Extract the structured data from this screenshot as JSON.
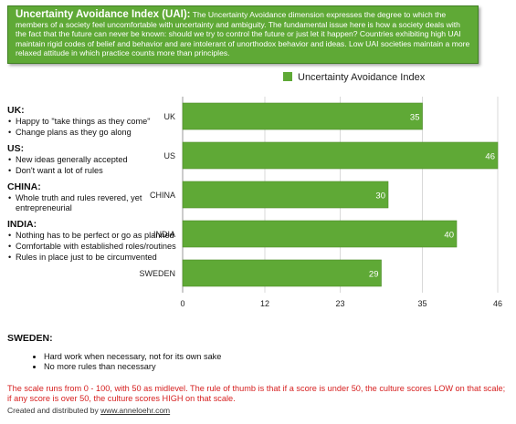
{
  "banner": {
    "title": "Uncertainty Avoidance Index (UAI):",
    "text": "The Uncertainty Avoidance dimension expresses the degree to which the members of a society feel uncomfortable with uncertainty and ambiguity. The fundamental issue here is how a society deals with the fact that the future can never be known: should we try to control the future or just let it happen? Countries exhibiting high UAI maintain rigid codes of belief and behavior and are intolerant of unorthodox behavior and ideas. Low UAI societies maintain a more relaxed attitude in which practice counts more than principles."
  },
  "notes": [
    {
      "country": "UK:",
      "items": [
        "Happy to \"take things as they come\"",
        "Change plans as they go along"
      ]
    },
    {
      "country": "US:",
      "items": [
        "New ideas generally accepted",
        "Don't want a lot of rules"
      ]
    },
    {
      "country": "CHINA:",
      "items": [
        "Whole truth and rules revered, yet entrepreneurial"
      ]
    },
    {
      "country": "INDIA:",
      "items": [
        "Nothing has to be perfect or go as planned",
        "Comfortable with established roles/routines",
        "Rules in place just to be circumvented"
      ]
    }
  ],
  "sweden": {
    "country": "SWEDEN:",
    "items": [
      "Hard work when necessary, not for its own sake",
      "No more rules than necessary"
    ]
  },
  "footnote": "The scale runs from 0 - 100, with 50 as midlevel. The rule of thumb is that if a score is under 50, the culture scores LOW on that scale; if any score is over 50, the culture scores HIGH on that scale.",
  "credit": {
    "prefix": "Created and distributed by ",
    "link": "www.anneloehr.com"
  },
  "colors": {
    "bar": "#5fa936",
    "bar_edge": "#4d8d2a",
    "banner": "#5fa936",
    "footnote": "#d61f1f"
  },
  "chart_data": {
    "type": "bar",
    "orientation": "horizontal",
    "legend": "Uncertainty Avoidance Index",
    "legend_position": "top",
    "categories": [
      "UK",
      "US",
      "CHINA",
      "INDIA",
      "SWEDEN"
    ],
    "values": [
      35,
      46,
      30,
      40,
      29
    ],
    "xlim": [
      0,
      46
    ],
    "xticks": [
      0,
      12,
      23,
      35,
      46
    ],
    "data_labels": true,
    "grid": true
  }
}
